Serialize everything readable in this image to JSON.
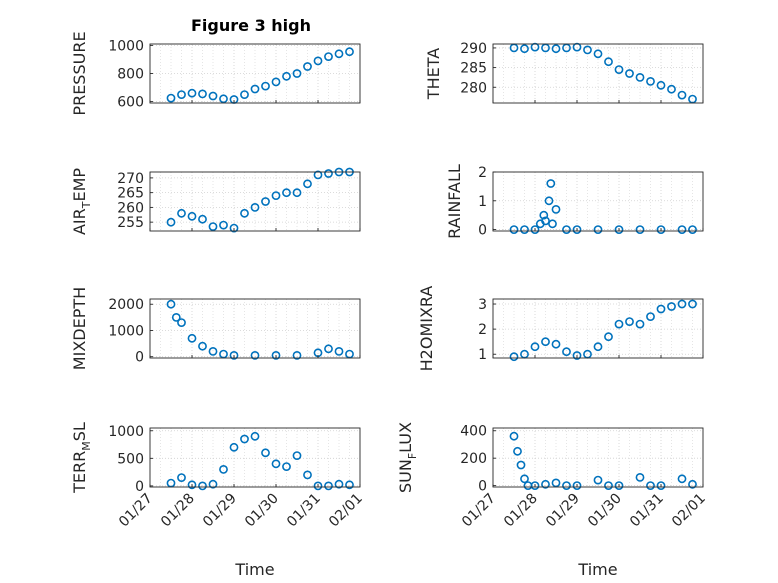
{
  "figure": {
    "title": "Figure 3 high"
  },
  "chart_data": [
    {
      "type": "scatter",
      "ylabel": "PRESSURE",
      "yticks": [
        600,
        800,
        1000
      ],
      "ylim": [
        590,
        1010
      ],
      "series": [
        {
          "x": [
            "01/27 12:00",
            "01/27 18:00",
            "01/28 00:00",
            "01/28 06:00",
            "01/28 12:00",
            "01/28 18:00",
            "01/29 00:00",
            "01/29 06:00",
            "01/29 12:00",
            "01/29 18:00",
            "01/30 00:00",
            "01/30 06:00",
            "01/30 12:00",
            "01/30 18:00",
            "01/31 00:00",
            "01/31 06:00",
            "01/31 12:00",
            "01/31 18:00"
          ],
          "y": [
            625,
            650,
            660,
            655,
            640,
            620,
            615,
            650,
            690,
            710,
            740,
            780,
            800,
            850,
            890,
            920,
            940,
            955
          ]
        }
      ]
    },
    {
      "type": "scatter",
      "ylabel": "THETA",
      "yticks": [
        280,
        285,
        290
      ],
      "ylim": [
        276,
        291
      ],
      "series": [
        {
          "x": [
            "01/27 12:00",
            "01/27 18:00",
            "01/28 00:00",
            "01/28 06:00",
            "01/28 12:00",
            "01/28 18:00",
            "01/29 00:00",
            "01/29 06:00",
            "01/29 12:00",
            "01/29 18:00",
            "01/30 00:00",
            "01/30 06:00",
            "01/30 12:00",
            "01/30 18:00",
            "01/31 00:00",
            "01/31 06:00",
            "01/31 12:00",
            "01/31 18:00"
          ],
          "y": [
            290,
            289.8,
            290.2,
            290,
            289.8,
            290,
            290.2,
            289.5,
            288.5,
            286.5,
            284.5,
            283.5,
            282.5,
            281.5,
            280.5,
            279.5,
            278,
            277
          ]
        }
      ]
    },
    {
      "type": "scatter",
      "ylabel": "AIR_TEMP",
      "yticks": [
        255,
        260,
        265,
        270
      ],
      "ylim": [
        252,
        272
      ],
      "series": [
        {
          "x": [
            "01/27 12:00",
            "01/27 18:00",
            "01/28 00:00",
            "01/28 06:00",
            "01/28 12:00",
            "01/28 18:00",
            "01/29 00:00",
            "01/29 06:00",
            "01/29 12:00",
            "01/29 18:00",
            "01/30 00:00",
            "01/30 06:00",
            "01/30 12:00",
            "01/30 18:00",
            "01/31 00:00",
            "01/31 06:00",
            "01/31 12:00",
            "01/31 18:00"
          ],
          "y": [
            255,
            258,
            257,
            256,
            253.5,
            254,
            253,
            258,
            260,
            262,
            264,
            265,
            265,
            268,
            271,
            271.5,
            272,
            272
          ]
        }
      ]
    },
    {
      "type": "scatter",
      "ylabel": "RAINFALL",
      "yticks": [
        0,
        1,
        2
      ],
      "ylim": [
        -0.05,
        2
      ],
      "series": [
        {
          "x": [
            "01/27 12:00",
            "01/27 18:00",
            "01/28 00:00",
            "01/28 03:00",
            "01/28 05:00",
            "01/28 06:00",
            "01/28 08:00",
            "01/28 09:00",
            "01/28 10:00",
            "01/28 12:00",
            "01/28 18:00",
            "01/29 00:00",
            "01/29 12:00",
            "01/30 00:00",
            "01/30 12:00",
            "01/31 00:00",
            "01/31 12:00",
            "01/31 18:00"
          ],
          "y": [
            0,
            0,
            0,
            0.2,
            0.5,
            0.3,
            1.0,
            1.6,
            0.2,
            0.7,
            0,
            0,
            0,
            0,
            0,
            0,
            0,
            0
          ]
        }
      ]
    },
    {
      "type": "scatter",
      "ylabel": "MIXDEPTH",
      "yticks": [
        0,
        1000,
        2000
      ],
      "ylim": [
        -50,
        2200
      ],
      "series": [
        {
          "x": [
            "01/27 12:00",
            "01/27 15:00",
            "01/27 18:00",
            "01/28 00:00",
            "01/28 06:00",
            "01/28 12:00",
            "01/28 18:00",
            "01/29 00:00",
            "01/29 12:00",
            "01/30 00:00",
            "01/30 12:00",
            "01/31 00:00",
            "01/31 06:00",
            "01/31 12:00",
            "01/31 18:00"
          ],
          "y": [
            2000,
            1500,
            1300,
            700,
            400,
            200,
            100,
            50,
            50,
            50,
            50,
            150,
            300,
            200,
            100
          ]
        }
      ]
    },
    {
      "type": "scatter",
      "ylabel": "H2OMIXRA",
      "yticks": [
        1,
        2,
        3
      ],
      "ylim": [
        0.85,
        3.2
      ],
      "series": [
        {
          "x": [
            "01/27 12:00",
            "01/27 18:00",
            "01/28 00:00",
            "01/28 06:00",
            "01/28 12:00",
            "01/28 18:00",
            "01/29 00:00",
            "01/29 06:00",
            "01/29 12:00",
            "01/29 18:00",
            "01/30 00:00",
            "01/30 06:00",
            "01/30 12:00",
            "01/30 18:00",
            "01/31 00:00",
            "01/31 06:00",
            "01/31 12:00",
            "01/31 18:00"
          ],
          "y": [
            0.9,
            1.0,
            1.3,
            1.5,
            1.4,
            1.1,
            0.95,
            1.0,
            1.3,
            1.7,
            2.2,
            2.3,
            2.2,
            2.5,
            2.8,
            2.9,
            3.0,
            3.0
          ]
        }
      ]
    },
    {
      "type": "scatter",
      "ylabel": "TERR_MSL",
      "yticks": [
        0,
        500,
        1000
      ],
      "ylim": [
        -20,
        1050
      ],
      "series": [
        {
          "x": [
            "01/27 12:00",
            "01/27 18:00",
            "01/28 00:00",
            "01/28 06:00",
            "01/28 12:00",
            "01/28 18:00",
            "01/29 00:00",
            "01/29 06:00",
            "01/29 12:00",
            "01/29 18:00",
            "01/30 00:00",
            "01/30 06:00",
            "01/30 12:00",
            "01/30 18:00",
            "01/31 00:00",
            "01/31 06:00",
            "01/31 12:00",
            "01/31 18:00"
          ],
          "y": [
            50,
            150,
            20,
            0,
            30,
            300,
            700,
            850,
            900,
            600,
            400,
            350,
            550,
            200,
            0,
            0,
            30,
            20
          ]
        }
      ]
    },
    {
      "type": "scatter",
      "ylabel": "SUN_FLUX",
      "yticks": [
        0,
        200,
        400
      ],
      "ylim": [
        -10,
        420
      ],
      "series": [
        {
          "x": [
            "01/27 12:00",
            "01/27 14:00",
            "01/27 16:00",
            "01/27 18:00",
            "01/27 20:00",
            "01/28 00:00",
            "01/28 06:00",
            "01/28 12:00",
            "01/28 18:00",
            "01/29 00:00",
            "01/29 12:00",
            "01/29 18:00",
            "01/30 00:00",
            "01/30 12:00",
            "01/30 18:00",
            "01/31 00:00",
            "01/31 12:00",
            "01/31 18:00"
          ],
          "y": [
            360,
            250,
            150,
            50,
            0,
            0,
            10,
            20,
            0,
            0,
            40,
            0,
            0,
            60,
            0,
            0,
            50,
            10
          ]
        }
      ]
    }
  ],
  "x_axis": {
    "ticks": [
      "01/27",
      "01/28",
      "01/29",
      "01/30",
      "01/31",
      "02/01"
    ],
    "label": "Time"
  },
  "colors": {
    "marker": "#0072BD",
    "axis": "#262626",
    "grid": "#dfdfdf"
  }
}
